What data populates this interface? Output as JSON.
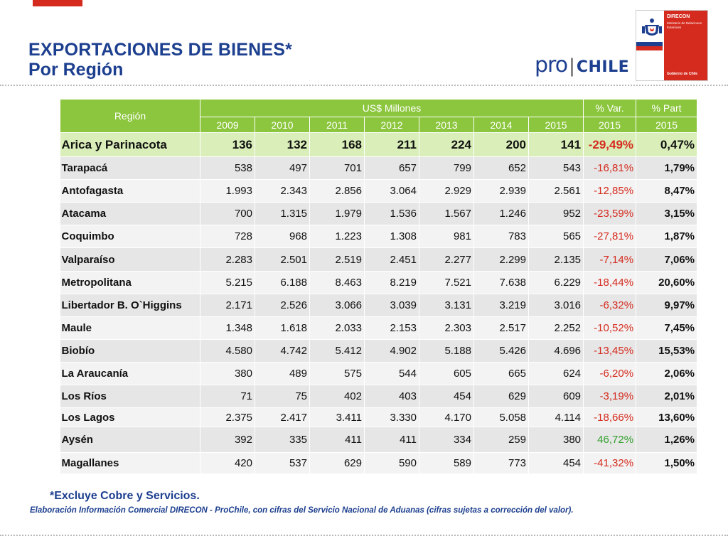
{
  "title": {
    "line1": "EXPORTACIONES DE BIENES*",
    "line2": "Por Región"
  },
  "brand": {
    "prochile_pro": "pro",
    "prochile_sep": "|",
    "prochile_chile": "CHILE",
    "direcon": "DIRECON",
    "ministerio": "Ministerio de Relaciones Exteriores",
    "gobierno": "Gobierno de Chile",
    "colors": {
      "blue": "#1d3f8f",
      "red": "#d52b1e",
      "green": "#8cc63e"
    }
  },
  "table": {
    "header": {
      "region": "Región",
      "group": "US$ Millones",
      "years": [
        "2009",
        "2010",
        "2011",
        "2012",
        "2013",
        "2014",
        "2015"
      ],
      "var": "% Var. 2015",
      "var_l1": "% Var.",
      "var_l2": "2015",
      "part_l1": "% Part",
      "part_l2": "2015"
    },
    "rows": [
      {
        "region": "Arica y Parinacota",
        "values": [
          "136",
          "132",
          "168",
          "211",
          "224",
          "200",
          "141"
        ],
        "var": "-29,49%",
        "part": "0,47%"
      },
      {
        "region": "Tarapacá",
        "values": [
          "538",
          "497",
          "701",
          "657",
          "799",
          "652",
          "543"
        ],
        "var": "-16,81%",
        "part": "1,79%"
      },
      {
        "region": "Antofagasta",
        "values": [
          "1.993",
          "2.343",
          "2.856",
          "3.064",
          "2.929",
          "2.939",
          "2.561"
        ],
        "var": "-12,85%",
        "part": "8,47%"
      },
      {
        "region": "Atacama",
        "values": [
          "700",
          "1.315",
          "1.979",
          "1.536",
          "1.567",
          "1.246",
          "952"
        ],
        "var": "-23,59%",
        "part": "3,15%"
      },
      {
        "region": "Coquimbo",
        "values": [
          "728",
          "968",
          "1.223",
          "1.308",
          "981",
          "783",
          "565"
        ],
        "var": "-27,81%",
        "part": "1,87%"
      },
      {
        "region": "Valparaíso",
        "values": [
          "2.283",
          "2.501",
          "2.519",
          "2.451",
          "2.277",
          "2.299",
          "2.135"
        ],
        "var": "-7,14%",
        "part": "7,06%"
      },
      {
        "region": "Metropolitana",
        "values": [
          "5.215",
          "6.188",
          "8.463",
          "8.219",
          "7.521",
          "7.638",
          "6.229"
        ],
        "var": "-18,44%",
        "part": "20,60%"
      },
      {
        "region": "Libertador B. O`Higgins",
        "values": [
          "2.171",
          "2.526",
          "3.066",
          "3.039",
          "3.131",
          "3.219",
          "3.016"
        ],
        "var": "-6,32%",
        "part": "9,97%"
      },
      {
        "region": "Maule",
        "values": [
          "1.348",
          "1.618",
          "2.033",
          "2.153",
          "2.303",
          "2.517",
          "2.252"
        ],
        "var": "-10,52%",
        "part": "7,45%"
      },
      {
        "region": "Biobío",
        "values": [
          "4.580",
          "4.742",
          "5.412",
          "4.902",
          "5.188",
          "5.426",
          "4.696"
        ],
        "var": "-13,45%",
        "part": "15,53%"
      },
      {
        "region": "La Araucanía",
        "values": [
          "380",
          "489",
          "575",
          "544",
          "605",
          "665",
          "624"
        ],
        "var": "-6,20%",
        "part": "2,06%"
      },
      {
        "region": "Los Ríos",
        "values": [
          "71",
          "75",
          "402",
          "403",
          "454",
          "629",
          "609"
        ],
        "var": "-3,19%",
        "part": "2,01%"
      },
      {
        "region": "Los Lagos",
        "values": [
          "2.375",
          "2.417",
          "3.411",
          "3.330",
          "4.170",
          "5.058",
          "4.114"
        ],
        "var": "-18,66%",
        "part": "13,60%"
      },
      {
        "region": "Aysén",
        "values": [
          "392",
          "335",
          "411",
          "411",
          "334",
          "259",
          "380"
        ],
        "var": "46,72%",
        "part": "1,26%"
      },
      {
        "region": "Magallanes",
        "values": [
          "420",
          "537",
          "629",
          "590",
          "589",
          "773",
          "454"
        ],
        "var": "-41,32%",
        "part": "1,50%"
      }
    ]
  },
  "note": "*Excluye Cobre y Servicios.",
  "source": "Elaboración Información Comercial DIRECON - ProChile, con cifras del Servicio Nacional de Aduanas (cifras sujetas a corrección del valor)."
}
